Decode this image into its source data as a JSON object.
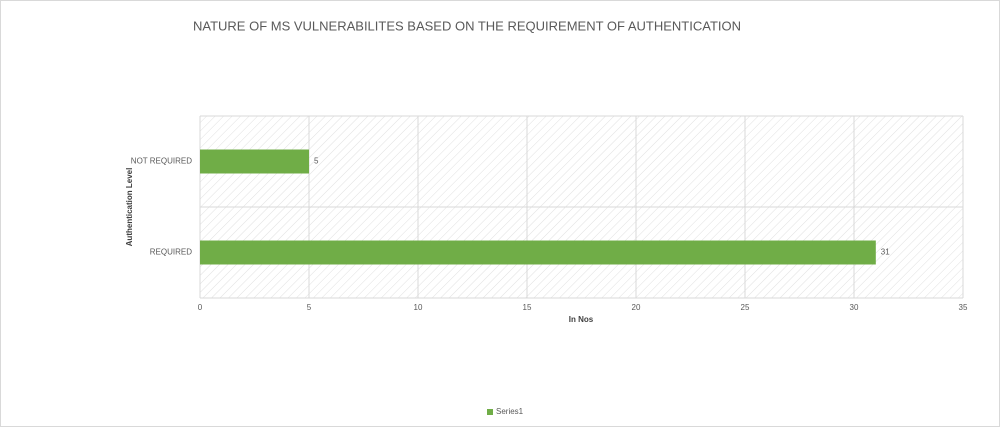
{
  "chart_data": {
    "type": "barh",
    "title": "NATURE OF MS VULNERABILITES BASED ON THE REQUIREMENT OF AUTHENTICATION",
    "x_label": "In Nos",
    "y_label": "Authentication  Level",
    "categories": [
      "NOT REQUIRED",
      "REQUIRED"
    ],
    "series": [
      {
        "name": "Series1",
        "color": "#70ad47",
        "values": [
          5,
          31
        ]
      }
    ],
    "xlim": [
      0,
      35
    ],
    "xticks": [
      0,
      5,
      10,
      15,
      20,
      25,
      30,
      35
    ],
    "grid": true,
    "legend": "bottom"
  }
}
